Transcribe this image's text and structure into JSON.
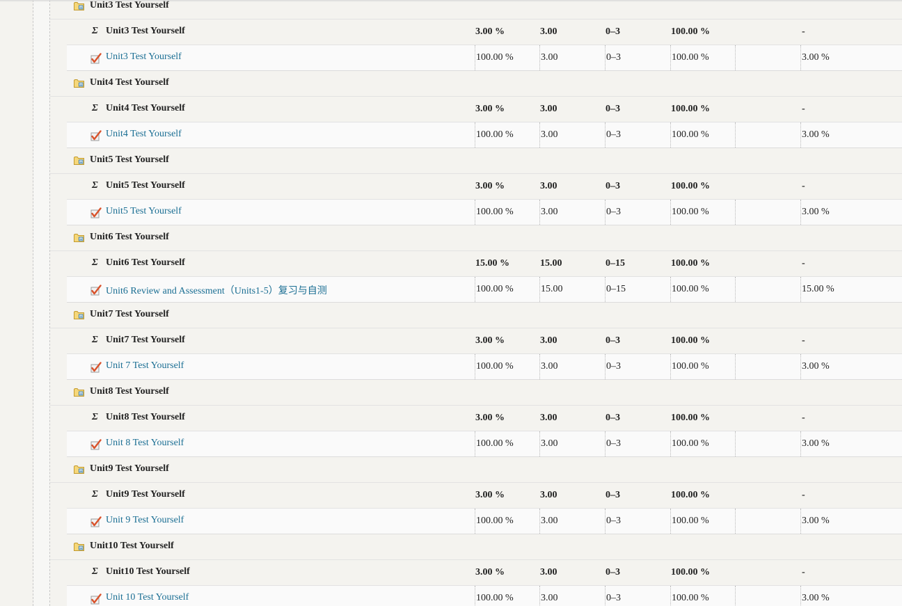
{
  "groups": [
    {
      "category": "Unit3 Test Yourself",
      "total": {
        "name": "Unit3 Test Yourself",
        "weight": "3.00 %",
        "grade": "3.00",
        "range": "0–3",
        "percentage": "100.00 %",
        "feedback": "",
        "contribution": "-"
      },
      "item": {
        "name": "Unit3 Test Yourself",
        "weight": "100.00 %",
        "grade": "3.00",
        "range": "0–3",
        "percentage": "100.00 %",
        "feedback": "",
        "contribution": "3.00 %"
      }
    },
    {
      "category": "Unit4 Test Yourself",
      "total": {
        "name": "Unit4 Test Yourself",
        "weight": "3.00 %",
        "grade": "3.00",
        "range": "0–3",
        "percentage": "100.00 %",
        "feedback": "",
        "contribution": "-"
      },
      "item": {
        "name": "Unit4 Test Yourself",
        "weight": "100.00 %",
        "grade": "3.00",
        "range": "0–3",
        "percentage": "100.00 %",
        "feedback": "",
        "contribution": "3.00 %"
      }
    },
    {
      "category": "Unit5 Test Yourself",
      "total": {
        "name": "Unit5 Test Yourself",
        "weight": "3.00 %",
        "grade": "3.00",
        "range": "0–3",
        "percentage": "100.00 %",
        "feedback": "",
        "contribution": "-"
      },
      "item": {
        "name": "Unit5 Test Yourself",
        "weight": "100.00 %",
        "grade": "3.00",
        "range": "0–3",
        "percentage": "100.00 %",
        "feedback": "",
        "contribution": "3.00 %"
      }
    },
    {
      "category": "Unit6 Test Yourself",
      "total": {
        "name": "Unit6 Test Yourself",
        "weight": "15.00 %",
        "grade": "15.00",
        "range": "0–15",
        "percentage": "100.00 %",
        "feedback": "",
        "contribution": "-"
      },
      "item": {
        "name": "Unit6 Review and Assessment（Units1-5）复习与自测",
        "weight": "100.00 %",
        "grade": "15.00",
        "range": "0–15",
        "percentage": "100.00 %",
        "feedback": "",
        "contribution": "15.00 %"
      }
    },
    {
      "category": "Unit7 Test Yourself",
      "total": {
        "name": "Unit7 Test Yourself",
        "weight": "3.00 %",
        "grade": "3.00",
        "range": "0–3",
        "percentage": "100.00 %",
        "feedback": "",
        "contribution": "-"
      },
      "item": {
        "name": "Unit 7 Test Yourself",
        "weight": "100.00 %",
        "grade": "3.00",
        "range": "0–3",
        "percentage": "100.00 %",
        "feedback": "",
        "contribution": "3.00 %"
      }
    },
    {
      "category": "Unit8 Test Yourself",
      "total": {
        "name": "Unit8 Test Yourself",
        "weight": "3.00 %",
        "grade": "3.00",
        "range": "0–3",
        "percentage": "100.00 %",
        "feedback": "",
        "contribution": "-"
      },
      "item": {
        "name": "Unit 8 Test Yourself",
        "weight": "100.00 %",
        "grade": "3.00",
        "range": "0–3",
        "percentage": "100.00 %",
        "feedback": "",
        "contribution": "3.00 %"
      }
    },
    {
      "category": "Unit9 Test Yourself",
      "total": {
        "name": "Unit9 Test Yourself",
        "weight": "3.00 %",
        "grade": "3.00",
        "range": "0–3",
        "percentage": "100.00 %",
        "feedback": "",
        "contribution": "-"
      },
      "item": {
        "name": "Unit 9 Test Yourself",
        "weight": "100.00 %",
        "grade": "3.00",
        "range": "0–3",
        "percentage": "100.00 %",
        "feedback": "",
        "contribution": "3.00 %"
      }
    },
    {
      "category": "Unit10 Test Yourself",
      "total": {
        "name": "Unit10 Test Yourself",
        "weight": "3.00 %",
        "grade": "3.00",
        "range": "0–3",
        "percentage": "100.00 %",
        "feedback": "",
        "contribution": "-"
      },
      "item": {
        "name": "Unit 10 Test Yourself",
        "weight": "100.00 %",
        "grade": "3.00",
        "range": "0–3",
        "percentage": "100.00 %",
        "feedback": "",
        "contribution": "3.00 %"
      }
    }
  ],
  "icons": {
    "category": "folder-icon",
    "total": "sigma-icon",
    "item": "quiz-icon"
  },
  "symbols": {
    "sigma": "Σ"
  },
  "colors": {
    "link": "#1a6e93",
    "background": "#f4f3ef",
    "item_row": "#fafafa",
    "folder": "#f0c44c",
    "quiz_check": "#d9532c"
  }
}
